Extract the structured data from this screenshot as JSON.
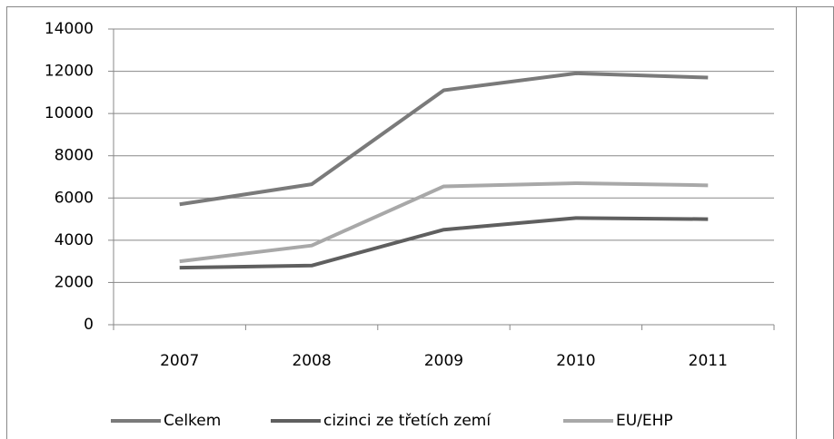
{
  "chart_data": {
    "type": "line",
    "categories": [
      "2007",
      "2008",
      "2009",
      "2010",
      "2011"
    ],
    "series": [
      {
        "name": "Celkem",
        "color": "#7a7a7a",
        "values": [
          5700,
          6650,
          11100,
          11900,
          11700
        ]
      },
      {
        "name": "cizinci ze třetích zemí",
        "color": "#5f5f5f",
        "values": [
          2700,
          2800,
          4500,
          5050,
          5000
        ]
      },
      {
        "name": "EU/EHP",
        "color": "#a8a8a8",
        "values": [
          3000,
          3750,
          6550,
          6700,
          6600
        ]
      }
    ],
    "ylim": [
      0,
      14000
    ],
    "yticks": [
      0,
      2000,
      4000,
      6000,
      8000,
      10000,
      12000,
      14000
    ],
    "grid": true,
    "legend": "bottom"
  }
}
